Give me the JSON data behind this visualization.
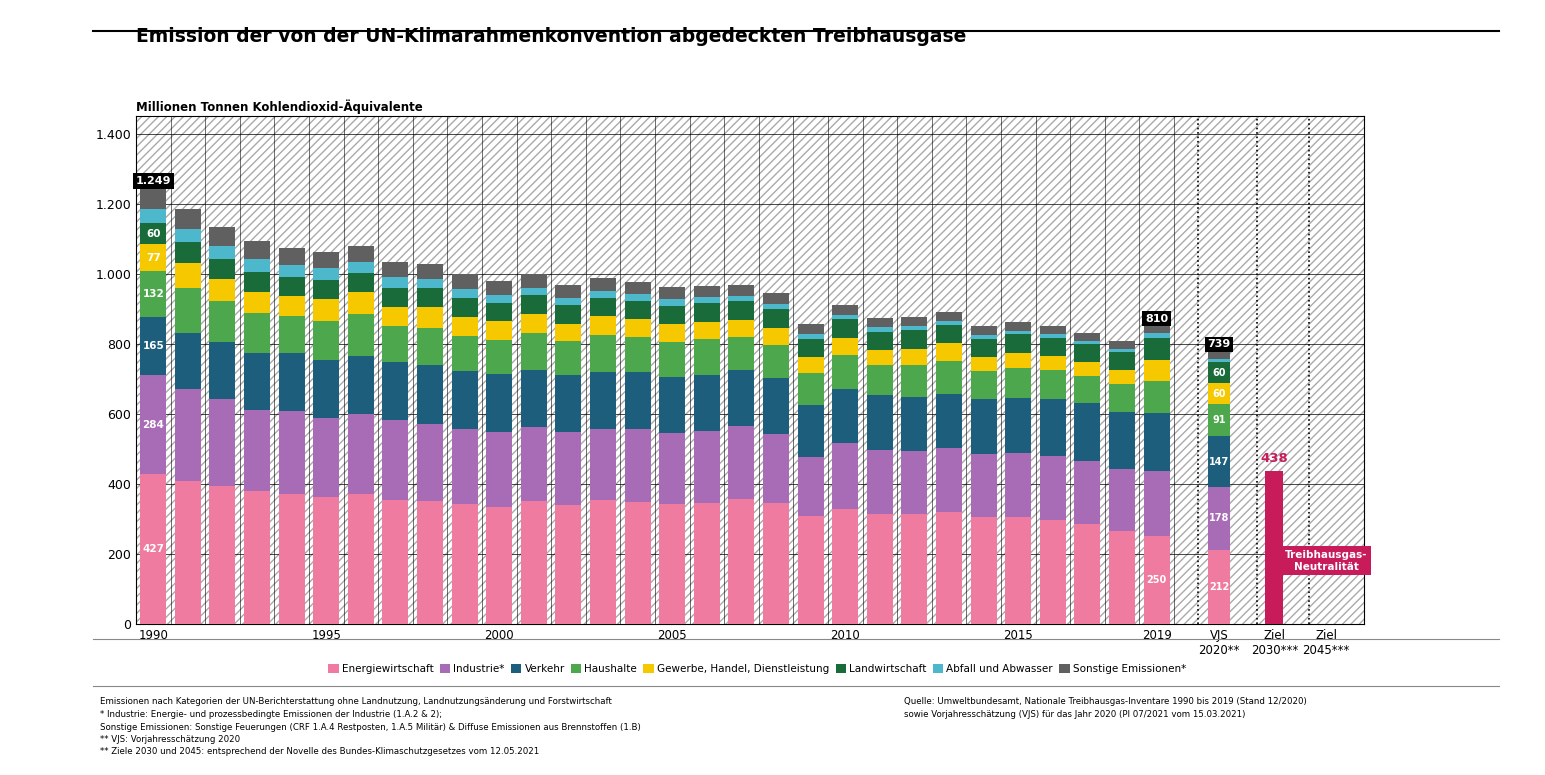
{
  "title1": "Emission der von der ",
  "title2": "UN-Klimarahmenkonvention",
  "title3": " abgedeckten Treibhausgase",
  "ylabel": "Millionen Tonnen Kohlendioxid-Äquivalente",
  "categories": [
    "Energiewirtschaft",
    "Industrie*",
    "Verkehr",
    "Haushalte",
    "Gewerbe, Handel, Dienstleistung",
    "Landwirtschaft",
    "Abfall und Abwasser",
    "Sonstige Emissionen*"
  ],
  "colors": [
    "#F07BA0",
    "#A86BB5",
    "#1C5E7B",
    "#4DA84D",
    "#F5C800",
    "#1A6B3A",
    "#4DB8CC",
    "#606060"
  ],
  "years": [
    1990,
    1991,
    1992,
    1993,
    1994,
    1995,
    1996,
    1997,
    1998,
    1999,
    2000,
    2001,
    2002,
    2003,
    2004,
    2005,
    2006,
    2007,
    2008,
    2009,
    2010,
    2011,
    2012,
    2013,
    2014,
    2015,
    2016,
    2017,
    2018,
    2019
  ],
  "data": {
    "Energiewirtschaft": [
      427,
      408,
      394,
      379,
      372,
      362,
      371,
      354,
      350,
      341,
      335,
      351,
      340,
      353,
      349,
      341,
      344,
      356,
      346,
      308,
      328,
      315,
      314,
      320,
      306,
      306,
      298,
      286,
      264,
      250
    ],
    "Industrie*": [
      284,
      262,
      247,
      233,
      236,
      226,
      228,
      228,
      222,
      217,
      212,
      211,
      208,
      205,
      208,
      204,
      207,
      209,
      197,
      168,
      188,
      183,
      181,
      183,
      180,
      182,
      181,
      179,
      177,
      187
    ],
    "Verkehr": [
      165,
      162,
      163,
      163,
      165,
      165,
      166,
      167,
      167,
      165,
      166,
      163,
      162,
      162,
      162,
      159,
      160,
      160,
      158,
      150,
      156,
      156,
      154,
      154,
      155,
      157,
      163,
      166,
      164,
      166
    ],
    "Haushalte": [
      132,
      128,
      118,
      113,
      106,
      113,
      119,
      102,
      107,
      100,
      98,
      105,
      97,
      104,
      100,
      101,
      102,
      95,
      96,
      91,
      96,
      85,
      91,
      95,
      81,
      87,
      82,
      78,
      81,
      90
    ],
    "Gewerbe, Handel, Dienstleistung": [
      77,
      72,
      64,
      61,
      57,
      61,
      64,
      55,
      58,
      54,
      53,
      55,
      51,
      55,
      51,
      51,
      50,
      48,
      48,
      45,
      49,
      43,
      46,
      49,
      41,
      43,
      41,
      38,
      40,
      62
    ],
    "Landwirtschaft": [
      60,
      58,
      57,
      56,
      55,
      55,
      55,
      54,
      54,
      53,
      52,
      53,
      52,
      53,
      53,
      53,
      53,
      53,
      53,
      52,
      53,
      53,
      53,
      53,
      52,
      52,
      52,
      52,
      51,
      62
    ],
    "Abfall und Abwasser": [
      40,
      38,
      37,
      36,
      35,
      34,
      32,
      30,
      28,
      26,
      24,
      22,
      21,
      20,
      19,
      18,
      17,
      16,
      15,
      14,
      13,
      12,
      11,
      11,
      10,
      10,
      10,
      10,
      9,
      13
    ],
    "Sonstige Emissionen*": [
      60,
      57,
      55,
      52,
      49,
      47,
      45,
      44,
      43,
      42,
      40,
      39,
      37,
      36,
      35,
      34,
      33,
      32,
      31,
      30,
      29,
      28,
      27,
      26,
      25,
      25,
      24,
      23,
      22,
      23
    ]
  },
  "vjs2020": {
    "Energiewirtschaft": 212,
    "Industrie*": 178,
    "Verkehr": 147,
    "Haushalte": 91,
    "Gewerbe, Handel, Dienstleistung": 60,
    "Landwirtschaft": 60,
    "Abfall und Abwasser": 9,
    "Sonstige Emissionen*": 22
  },
  "ziel2030_val": 438,
  "ylim": [
    0,
    1450
  ],
  "yticks": [
    0,
    200,
    400,
    600,
    800,
    1000,
    1200,
    1400
  ],
  "ytick_labels": [
    "0",
    "200",
    "400",
    "600",
    "800",
    "1.000",
    "1.200",
    "1.400"
  ],
  "legend_labels": [
    "Energiewirtschaft",
    "Industrie*",
    "Verkehr",
    "Haushalte",
    "Gewerbe, Handel, Dienstleistung",
    "Landwirtschaft",
    "Abfall und Abwasser",
    "Sonstige Emissionen*"
  ],
  "footnote_left1": "Emissionen nach Kategorien der UN-Berichterstattung ohne Landnutzung, Landnutzungsänderung und Forstwirtschaft",
  "footnote_left2": "* Industrie: Energie- und prozessbedingte Emissionen der Industrie (1.A.2 & 2);",
  "footnote_left3": "Sonstige Emissionen: Sonstige Feuerungen (CRF 1.A.4 Restposten, 1.A.5 Militär) & Diffuse Emissionen aus Brennstoffen (1.B)",
  "footnote_left4": "** VJS: Vorjahresschätzung 2020",
  "footnote_left5": "** Ziele 2030 und 2045: entsprechend der Novelle des Bundes-Klimaschutzgesetzes vom 12.05.2021",
  "footnote_right1": "Quelle: Umweltbundesamt, Nationale Treibhausgas-Inventare 1990 bis 2019 (Stand 12/2020)",
  "footnote_right2": "sowie Vorjahresschätzung (VJS) für das Jahr 2020 (PI 07/2021 vom 15.03.2021)"
}
